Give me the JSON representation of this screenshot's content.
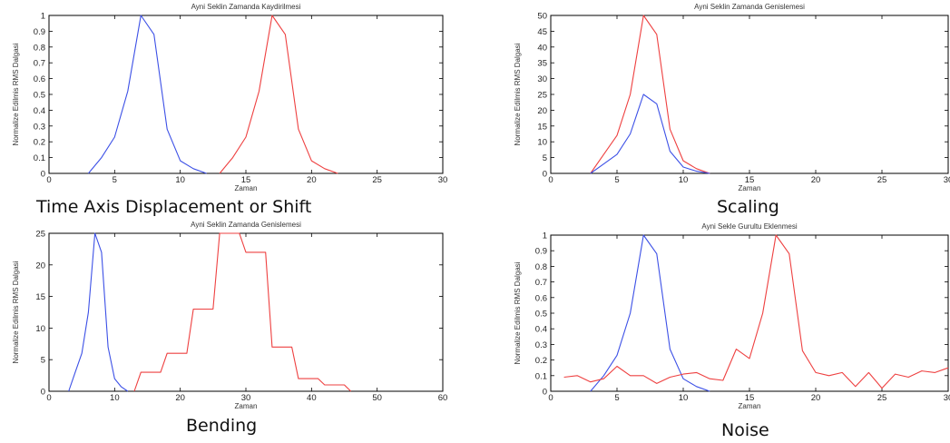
{
  "captions": {
    "shift": "Time Axis Displacement or Shift",
    "scaling": "Scaling",
    "bending": "Bending",
    "noise": "Noise"
  },
  "colors": {
    "series_blue": "#3c50e6",
    "series_red": "#ee4040"
  },
  "chart_data": [
    {
      "id": "shift",
      "type": "line",
      "title": "Ayni Seklin Zamanda Kaydirilmesi",
      "xlabel": "Zaman",
      "ylabel": "Normalize Edilmis RMS Dalgasi",
      "xlim": [
        0,
        30
      ],
      "ylim": [
        0,
        1
      ],
      "xticks": [
        0,
        5,
        10,
        15,
        20,
        25,
        30
      ],
      "yticks": [
        0,
        0.1,
        0.2,
        0.3,
        0.4,
        0.5,
        0.6,
        0.7,
        0.8,
        0.9,
        1
      ],
      "grid": false,
      "series": [
        {
          "color": "#3c50e6",
          "x": [
            3,
            4,
            5,
            6,
            7,
            8,
            9,
            10,
            11,
            12
          ],
          "y": [
            0,
            0.1,
            0.23,
            0.52,
            1,
            0.88,
            0.28,
            0.08,
            0.03,
            0
          ]
        },
        {
          "color": "#ee4040",
          "x": [
            13,
            14,
            15,
            16,
            17,
            18,
            19,
            20,
            21,
            22
          ],
          "y": [
            0,
            0.1,
            0.23,
            0.52,
            1,
            0.88,
            0.28,
            0.08,
            0.03,
            0
          ]
        }
      ]
    },
    {
      "id": "scaling",
      "type": "line",
      "title": "Ayni Seklin Zamanda Genislemesi",
      "xlabel": "Zaman",
      "ylabel": "Normalize Edilmis RMS Dalgasi",
      "xlim": [
        0,
        30
      ],
      "ylim": [
        0,
        50
      ],
      "xticks": [
        0,
        5,
        10,
        15,
        20,
        25,
        30
      ],
      "yticks": [
        0,
        5,
        10,
        15,
        20,
        25,
        30,
        35,
        40,
        45,
        50
      ],
      "grid": false,
      "series": [
        {
          "color": "#ee4040",
          "x": [
            3,
            4,
            5,
            6,
            7,
            8,
            9,
            10,
            11,
            12
          ],
          "y": [
            0,
            6,
            12,
            25,
            50,
            44,
            14,
            4,
            1.5,
            0
          ]
        },
        {
          "color": "#3c50e6",
          "x": [
            3,
            4,
            5,
            6,
            7,
            8,
            9,
            10,
            11,
            12
          ],
          "y": [
            0,
            3,
            6,
            12.5,
            25,
            22,
            7,
            2,
            0.7,
            0
          ]
        }
      ]
    },
    {
      "id": "bending",
      "type": "line",
      "title": "Ayni Seklin Zamanda Genislemesi",
      "xlabel": "Zaman",
      "ylabel": "Normalize Edilmis RMS Dalgasi",
      "xlim": [
        0,
        60
      ],
      "ylim": [
        0,
        25
      ],
      "xticks": [
        0,
        10,
        20,
        30,
        40,
        50,
        60
      ],
      "yticks": [
        0,
        5,
        10,
        15,
        20,
        25
      ],
      "grid": false,
      "series": [
        {
          "color": "#3c50e6",
          "x": [
            3,
            4,
            5,
            6,
            7,
            8,
            9,
            10,
            11,
            12
          ],
          "y": [
            0,
            3,
            6,
            12.5,
            25,
            22,
            7,
            2,
            0.7,
            0
          ]
        },
        {
          "color": "#ee4040",
          "x": [
            13,
            14,
            16,
            17,
            18,
            20,
            21,
            22,
            24,
            25,
            26,
            28,
            29,
            30,
            32,
            33,
            34,
            36,
            37,
            38,
            40,
            41,
            42,
            44,
            45,
            46
          ],
          "y": [
            0,
            3,
            3,
            3,
            6,
            6,
            6,
            13,
            13,
            13,
            25,
            25,
            25,
            22,
            22,
            22,
            7,
            7,
            7,
            2,
            2,
            2,
            1,
            1,
            1,
            0
          ]
        }
      ]
    },
    {
      "id": "noise",
      "type": "line",
      "title": "Ayni Sekle Gurultu Eklenmesi",
      "xlabel": "Zaman",
      "ylabel": "Normalize Edilmis RMS Dalgasi",
      "xlim": [
        0,
        30
      ],
      "ylim": [
        0,
        1
      ],
      "xticks": [
        0,
        5,
        10,
        15,
        20,
        25,
        30
      ],
      "yticks": [
        0,
        0.1,
        0.2,
        0.3,
        0.4,
        0.5,
        0.6,
        0.7,
        0.8,
        0.9,
        1
      ],
      "grid": false,
      "series": [
        {
          "color": "#3c50e6",
          "x": [
            3,
            4,
            5,
            6,
            7,
            8,
            9,
            10,
            11,
            12
          ],
          "y": [
            0,
            0.1,
            0.23,
            0.5,
            1,
            0.88,
            0.27,
            0.08,
            0.03,
            0
          ]
        },
        {
          "color": "#ee4040",
          "x": [
            1,
            2,
            3,
            4,
            5,
            6,
            7,
            8,
            9,
            10,
            11,
            12,
            13,
            14,
            15,
            16,
            17,
            18,
            19,
            20,
            21,
            22,
            23,
            24,
            25,
            26,
            27,
            28,
            29,
            30
          ],
          "y": [
            0.09,
            0.1,
            0.06,
            0.08,
            0.16,
            0.1,
            0.1,
            0.05,
            0.09,
            0.11,
            0.12,
            0.08,
            0.07,
            0.27,
            0.21,
            0.5,
            1,
            0.88,
            0.26,
            0.12,
            0.1,
            0.12,
            0.03,
            0.12,
            0.02,
            0.11,
            0.09,
            0.13,
            0.12,
            0.15
          ]
        }
      ]
    }
  ]
}
